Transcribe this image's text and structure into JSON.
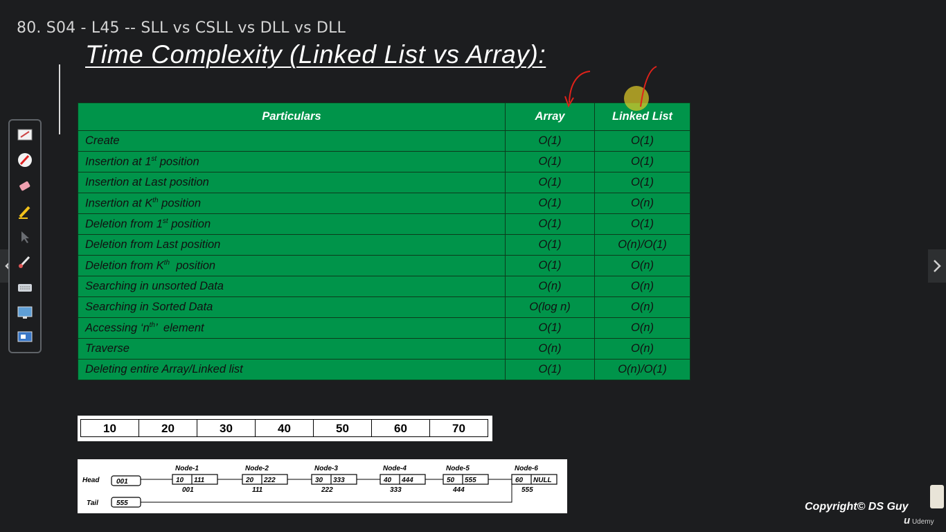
{
  "lecture_title": "80. S04 - L45 -- SLL vs CSLL vs DLL vs DLL",
  "slide_title": "Time Complexity (Linked List vs Array):",
  "table": {
    "headers": [
      "Particulars",
      "Array",
      "Linked List"
    ],
    "rows": [
      {
        "particular": "Create",
        "sup": "",
        "suffix": "",
        "array": "O(1)",
        "linked": "O(1)"
      },
      {
        "particular": "Insertion at 1",
        "sup": "st",
        "suffix": " position",
        "array": "O(1)",
        "linked": "O(1)"
      },
      {
        "particular": "Insertion at Last position",
        "sup": "",
        "suffix": "",
        "array": "O(1)",
        "linked": "O(1)"
      },
      {
        "particular": "Insertion at K",
        "sup": "th",
        "suffix": " position",
        "array": "O(1)",
        "linked": "O(n)"
      },
      {
        "particular": "Deletion from 1",
        "sup": "st",
        "suffix": " position",
        "array": "O(1)",
        "linked": "O(1)"
      },
      {
        "particular": "Deletion from Last position",
        "sup": "",
        "suffix": "",
        "array": "O(1)",
        "linked": "O(n)/O(1)"
      },
      {
        "particular": "Deletion from K",
        "sup": "th",
        "suffix": "  position",
        "array": "O(1)",
        "linked": "O(n)"
      },
      {
        "particular": "Searching in unsorted Data",
        "sup": "",
        "suffix": "",
        "array": "O(n)",
        "linked": "O(n)"
      },
      {
        "particular": "Searching in Sorted Data",
        "sup": "",
        "suffix": "",
        "array": "O(log n)",
        "linked": "O(n)"
      },
      {
        "particular": "Accessing ‘n",
        "sup": "th",
        "suffix": "’  element",
        "array": "O(1)",
        "linked": "O(n)"
      },
      {
        "particular": "Traverse",
        "sup": "",
        "suffix": "",
        "array": "O(n)",
        "linked": "O(n)"
      },
      {
        "particular": "Deleting entire Array/Linked list",
        "sup": "",
        "suffix": "",
        "array": "O(1)",
        "linked": "O(n)/O(1)"
      }
    ]
  },
  "array_values": [
    "10",
    "20",
    "30",
    "40",
    "50",
    "60",
    "70"
  ],
  "linked_list": {
    "head_label": "Head",
    "head_value": "001",
    "tail_label": "Tail",
    "tail_value": "555",
    "nodes": [
      {
        "name": "Node-1",
        "data": "10",
        "next": "111",
        "addr": "001"
      },
      {
        "name": "Node-2",
        "data": "20",
        "next": "222",
        "addr": "111"
      },
      {
        "name": "Node-3",
        "data": "30",
        "next": "333",
        "addr": "222"
      },
      {
        "name": "Node-4",
        "data": "40",
        "next": "444",
        "addr": "333"
      },
      {
        "name": "Node-5",
        "data": "50",
        "next": "555",
        "addr": "444"
      },
      {
        "name": "Node-6",
        "data": "60",
        "next": "NULL",
        "addr": "555"
      }
    ]
  },
  "copyright": "Copyright© DS Guy",
  "udemy_label": "Udemy",
  "toolbar_tools": [
    "whiteboard-icon",
    "pen-icon",
    "eraser-icon",
    "highlighter-icon",
    "pointer-icon",
    "brush-icon",
    "keyboard-icon",
    "screen-icon",
    "desktop-icon"
  ],
  "colors": {
    "table_green": "#00944a",
    "background": "#1c1d1f",
    "annotation_red": "#e0221a"
  }
}
